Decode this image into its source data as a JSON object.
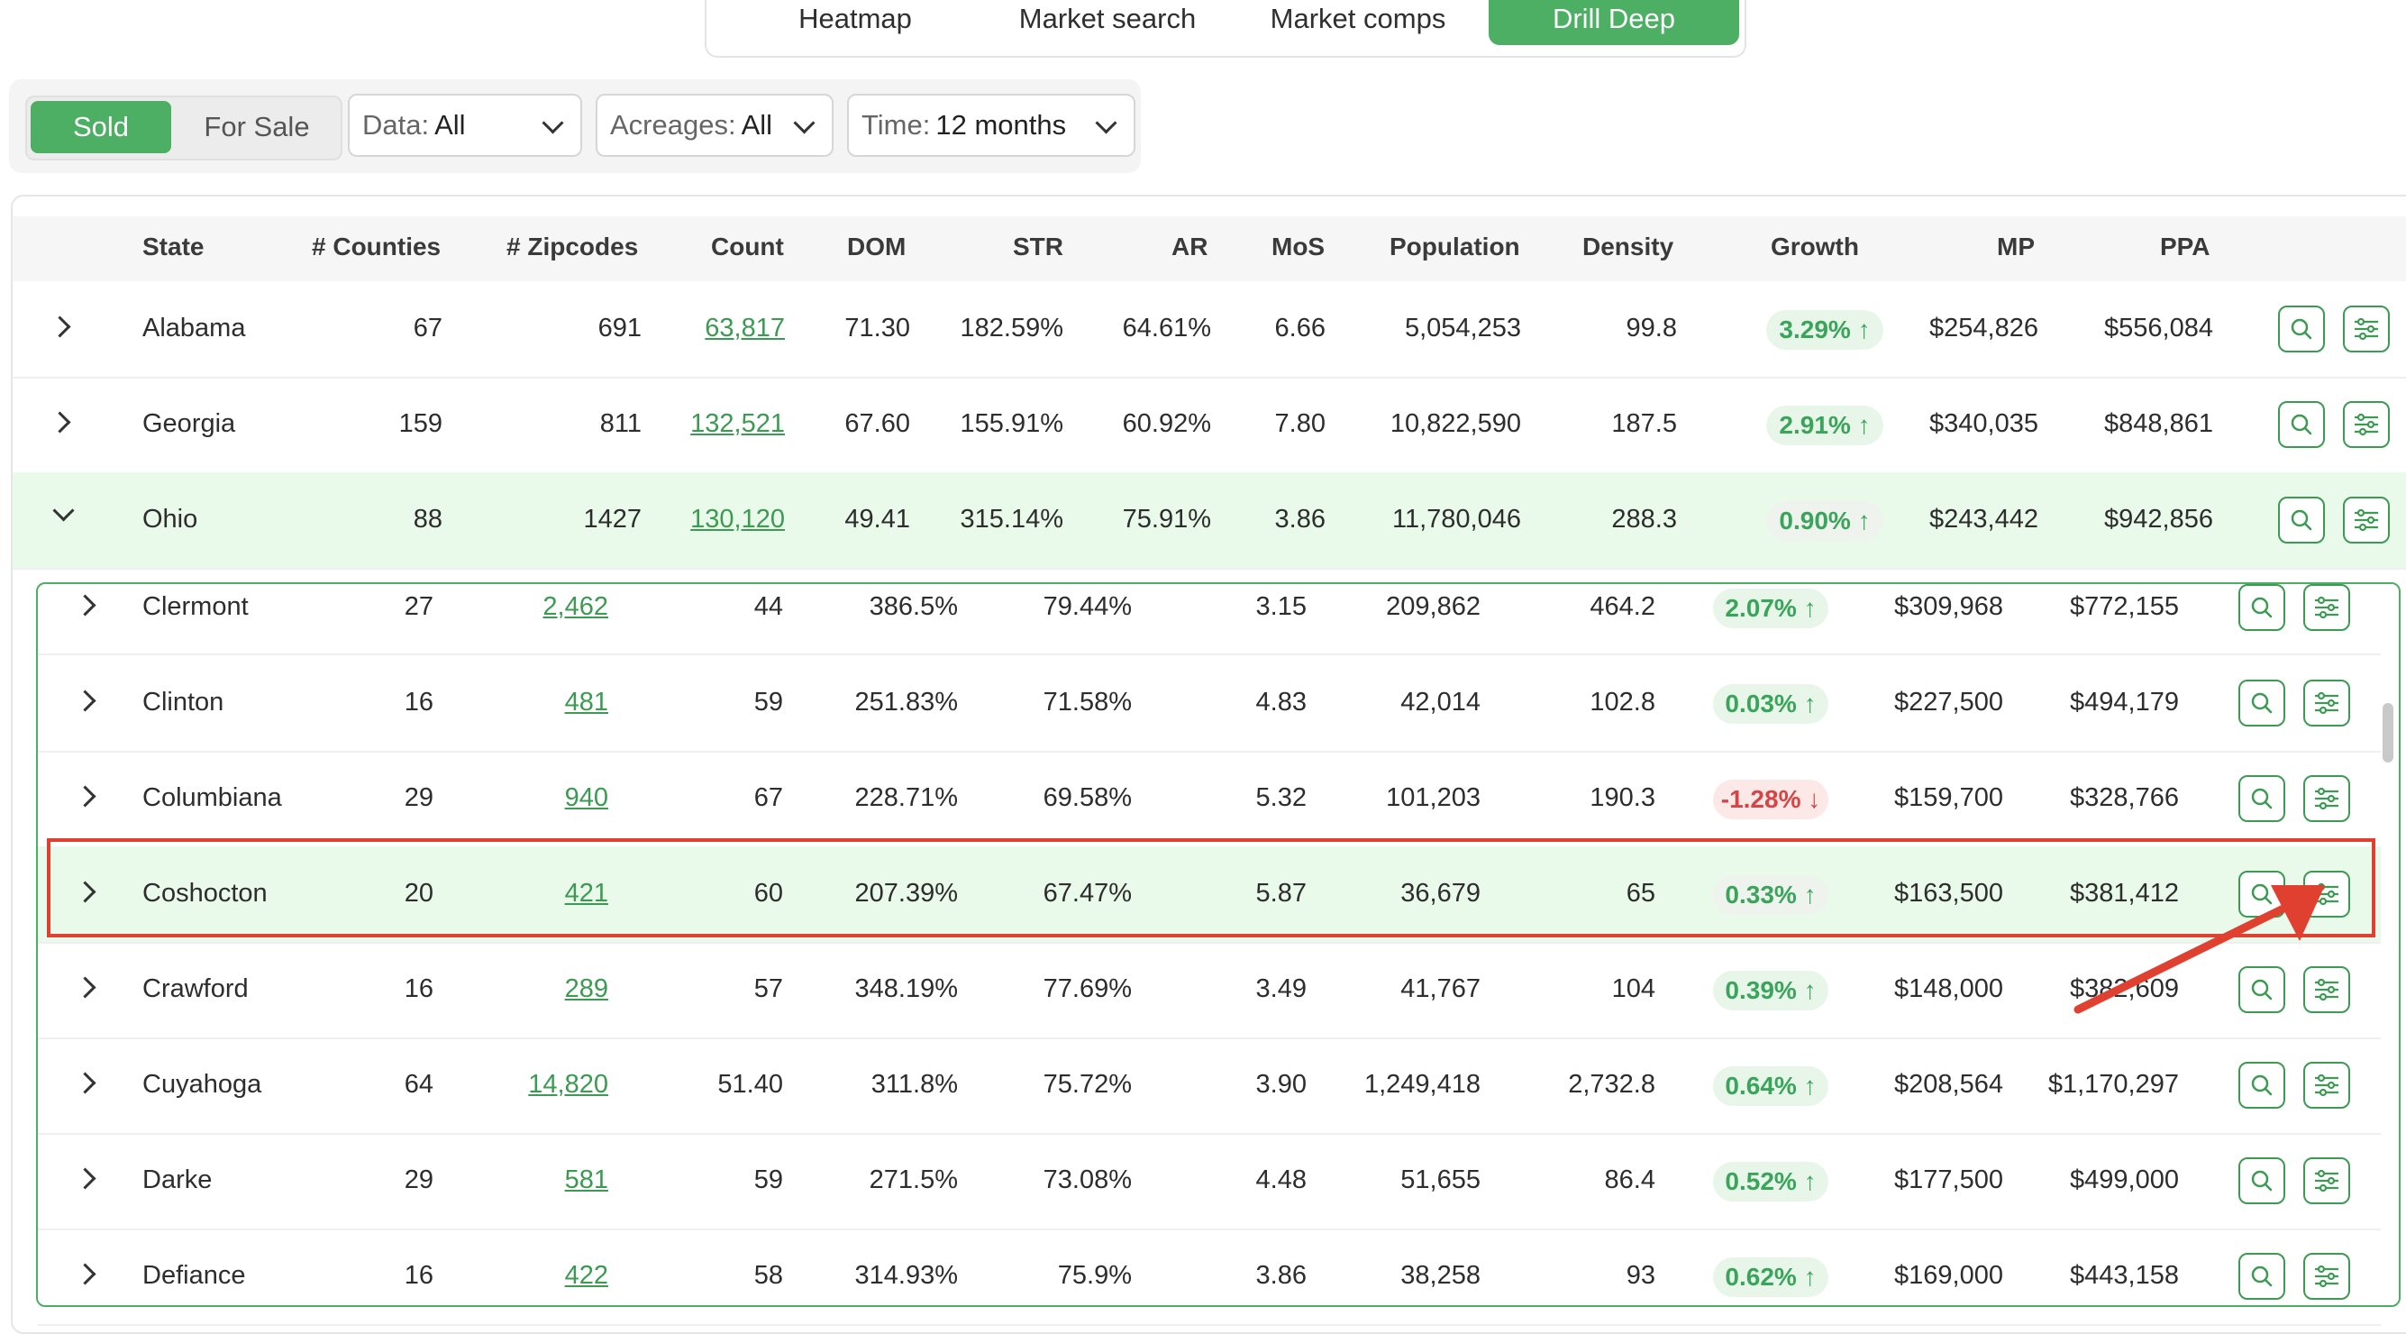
{
  "tabs": [
    {
      "label": "Heatmap",
      "active": false
    },
    {
      "label": "Market search",
      "active": false
    },
    {
      "label": "Market comps",
      "active": false
    },
    {
      "label": "Drill Deep",
      "active": true
    }
  ],
  "filters": {
    "toggle": {
      "sold": "Sold",
      "for_sale": "For Sale",
      "selected": "Sold"
    },
    "data": {
      "label": "Data:",
      "value": "All"
    },
    "acreages": {
      "label": "Acreages:",
      "value": "All"
    },
    "time": {
      "label": "Time:",
      "value": "12 months"
    }
  },
  "columns": [
    "State",
    "# Counties",
    "# Zipcodes",
    "Count",
    "DOM",
    "STR",
    "AR",
    "MoS",
    "Population",
    "Density",
    "Growth",
    "MP",
    "PPA"
  ],
  "states": [
    {
      "state": "Alabama",
      "counties": "67",
      "zipcodes": "691",
      "count": "63,817",
      "dom": "71.30",
      "str": "182.59%",
      "ar": "64.61%",
      "mos": "6.66",
      "population": "5,054,253",
      "density": "99.8",
      "growth": "3.29% ↑",
      "mp": "$254,826",
      "ppa": "$556,084",
      "expanded": false
    },
    {
      "state": "Georgia",
      "counties": "159",
      "zipcodes": "811",
      "count": "132,521",
      "dom": "67.60",
      "str": "155.91%",
      "ar": "60.92%",
      "mos": "7.80",
      "population": "10,822,590",
      "density": "187.5",
      "growth": "2.91% ↑",
      "mp": "$340,035",
      "ppa": "$848,861",
      "expanded": false
    },
    {
      "state": "Ohio",
      "counties": "88",
      "zipcodes": "1427",
      "count": "130,120",
      "dom": "49.41",
      "str": "315.14%",
      "ar": "75.91%",
      "mos": "3.86",
      "population": "11,780,046",
      "density": "288.3",
      "growth": "0.90% ↑",
      "mp": "$243,442",
      "ppa": "$942,856",
      "expanded": true
    }
  ],
  "counties": [
    {
      "name": "Clermont",
      "zipcodes": "27",
      "count": "2,462",
      "dom": "44",
      "str": "386.5%",
      "ar": "79.44%",
      "mos": "3.15",
      "population": "209,862",
      "density": "464.2",
      "growth": "2.07% ↑",
      "trend": "up",
      "mp": "$309,968",
      "ppa": "$772,155"
    },
    {
      "name": "Clinton",
      "zipcodes": "16",
      "count": "481",
      "dom": "59",
      "str": "251.83%",
      "ar": "71.58%",
      "mos": "4.83",
      "population": "42,014",
      "density": "102.8",
      "growth": "0.03% ↑",
      "trend": "up",
      "mp": "$227,500",
      "ppa": "$494,179"
    },
    {
      "name": "Columbiana",
      "zipcodes": "29",
      "count": "940",
      "dom": "67",
      "str": "228.71%",
      "ar": "69.58%",
      "mos": "5.32",
      "population": "101,203",
      "density": "190.3",
      "growth": "-1.28% ↓",
      "trend": "down",
      "mp": "$159,700",
      "ppa": "$328,766"
    },
    {
      "name": "Coshocton",
      "zipcodes": "20",
      "count": "421",
      "dom": "60",
      "str": "207.39%",
      "ar": "67.47%",
      "mos": "5.87",
      "population": "36,679",
      "density": "65",
      "growth": "0.33% ↑",
      "trend": "up",
      "mp": "$163,500",
      "ppa": "$381,412",
      "highlighted": true
    },
    {
      "name": "Crawford",
      "zipcodes": "16",
      "count": "289",
      "dom": "57",
      "str": "348.19%",
      "ar": "77.69%",
      "mos": "3.49",
      "population": "41,767",
      "density": "104",
      "growth": "0.39% ↑",
      "trend": "up",
      "mp": "$148,000",
      "ppa": "$382,609"
    },
    {
      "name": "Cuyahoga",
      "zipcodes": "64",
      "count": "14,820",
      "dom": "51.40",
      "str": "311.8%",
      "ar": "75.72%",
      "mos": "3.90",
      "population": "1,249,418",
      "density": "2,732.8",
      "growth": "0.64% ↑",
      "trend": "up",
      "mp": "$208,564",
      "ppa": "$1,170,297"
    },
    {
      "name": "Darke",
      "zipcodes": "29",
      "count": "581",
      "dom": "59",
      "str": "271.5%",
      "ar": "73.08%",
      "mos": "4.48",
      "population": "51,655",
      "density": "86.4",
      "growth": "0.52% ↑",
      "trend": "up",
      "mp": "$177,500",
      "ppa": "$499,000"
    },
    {
      "name": "Defiance",
      "zipcodes": "16",
      "count": "422",
      "dom": "58",
      "str": "314.93%",
      "ar": "75.9%",
      "mos": "3.86",
      "population": "38,258",
      "density": "93",
      "growth": "0.62% ↑",
      "trend": "up",
      "mp": "$169,000",
      "ppa": "$443,158"
    }
  ],
  "icons": {
    "search": "search-icon",
    "filter": "sliders-icon",
    "expand": "chevron-right-icon",
    "collapse": "chevron-down-icon"
  },
  "colors": {
    "accent": "#4caf63",
    "annotation": "#e0402f",
    "negative": "#d64545"
  }
}
